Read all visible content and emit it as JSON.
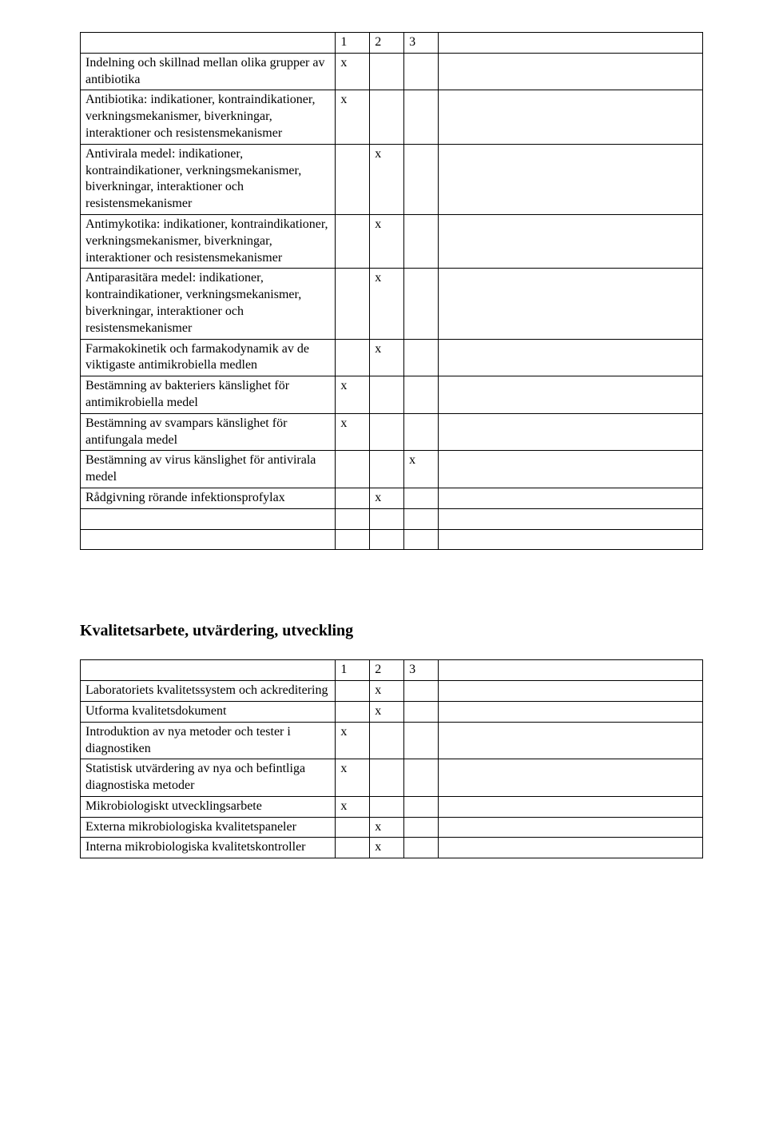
{
  "table1": {
    "header": {
      "c1": "1",
      "c2": "2",
      "c3": "3"
    },
    "rows": [
      {
        "desc": "Indelning och skillnad mellan olika grupper av antibiotika",
        "c1": "x",
        "c2": "",
        "c3": ""
      },
      {
        "desc": "Antibiotika: indikationer, kontraindikationer, verkningsmekanismer, biverkningar, interaktioner och resistensmekanismer",
        "c1": "x",
        "c2": "",
        "c3": ""
      },
      {
        "desc": "Antivirala medel: indikationer, kontraindikationer, verkningsmekanismer, biverkningar, interaktioner och resistensmekanismer",
        "c1": "",
        "c2": "x",
        "c3": ""
      },
      {
        "desc": "Antimykotika: indikationer, kontraindikationer, verkningsmekanismer, biverkningar, interaktioner och resistensmekanismer",
        "c1": "",
        "c2": "x",
        "c3": ""
      },
      {
        "desc": "Antiparasitära medel: indikationer, kontraindikationer, verkningsmekanismer, biverkningar, interaktioner och resistensmekanismer",
        "c1": "",
        "c2": "x",
        "c3": ""
      },
      {
        "desc": "Farmakokinetik och farmakodynamik av de viktigaste antimikrobiella medlen",
        "c1": "",
        "c2": "x",
        "c3": ""
      },
      {
        "desc": "Bestämning av bakteriers känslighet för antimikrobiella medel",
        "c1": "x",
        "c2": "",
        "c3": ""
      },
      {
        "desc": "Bestämning av svampars känslighet för antifungala medel",
        "c1": "x",
        "c2": "",
        "c3": ""
      },
      {
        "desc": "Bestämning av virus känslighet för antivirala medel",
        "c1": "",
        "c2": "",
        "c3": "x"
      },
      {
        "desc": "Rådgivning rörande infektionsprofylax",
        "c1": "",
        "c2": "x",
        "c3": ""
      },
      {
        "desc": "",
        "c1": "",
        "c2": "",
        "c3": ""
      },
      {
        "desc": "",
        "c1": "",
        "c2": "",
        "c3": ""
      }
    ]
  },
  "section_heading": "Kvalitetsarbete, utvärdering, utveckling",
  "table2": {
    "header": {
      "c1": "1",
      "c2": "2",
      "c3": "3"
    },
    "rows": [
      {
        "desc": "Laboratoriets kvalitetssystem och ackreditering",
        "c1": "",
        "c2": "x",
        "c3": ""
      },
      {
        "desc": "Utforma kvalitetsdokument",
        "c1": "",
        "c2": "x",
        "c3": ""
      },
      {
        "desc": "Introduktion av nya metoder och tester i diagnostiken",
        "c1": "x",
        "c2": "",
        "c3": ""
      },
      {
        "desc": "Statistisk utvärdering av nya och befintliga diagnostiska metoder",
        "c1": "x",
        "c2": "",
        "c3": ""
      },
      {
        "desc": "Mikrobiologiskt utvecklingsarbete",
        "c1": "x",
        "c2": "",
        "c3": ""
      },
      {
        "desc": "Externa mikrobiologiska kvalitetspaneler",
        "c1": "",
        "c2": "x",
        "c3": ""
      },
      {
        "desc": "Interna mikrobiologiska kvalitetskontroller",
        "c1": "",
        "c2": "x",
        "c3": ""
      }
    ]
  },
  "styling": {
    "font_family": "Times New Roman",
    "body_font_size_pt": 12,
    "heading_font_size_pt": 15,
    "text_color": "#000000",
    "background_color": "#ffffff",
    "border_color": "#000000",
    "col_widths_pct": {
      "desc": 41,
      "num": 5.5,
      "last": 42.5
    }
  }
}
